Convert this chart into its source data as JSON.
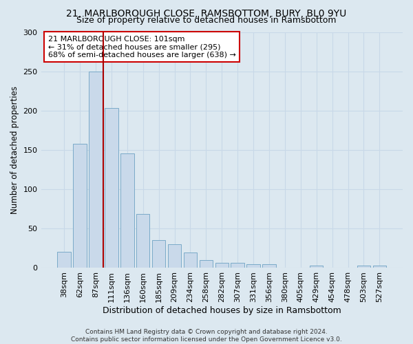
{
  "title": "21, MARLBOROUGH CLOSE, RAMSBOTTOM, BURY, BL0 9YU",
  "subtitle": "Size of property relative to detached houses in Ramsbottom",
  "xlabel": "Distribution of detached houses by size in Ramsbottom",
  "ylabel": "Number of detached properties",
  "categories": [
    "38sqm",
    "62sqm",
    "87sqm",
    "111sqm",
    "136sqm",
    "160sqm",
    "185sqm",
    "209sqm",
    "234sqm",
    "258sqm",
    "282sqm",
    "307sqm",
    "331sqm",
    "356sqm",
    "380sqm",
    "405sqm",
    "429sqm",
    "454sqm",
    "478sqm",
    "503sqm",
    "527sqm"
  ],
  "values": [
    20,
    158,
    250,
    203,
    145,
    68,
    35,
    30,
    19,
    10,
    6,
    6,
    4,
    4,
    0,
    0,
    3,
    0,
    0,
    3,
    3
  ],
  "bar_color": "#c9d9ea",
  "bar_edge_color": "#7aaac8",
  "property_line_x": 2.5,
  "annotation_text": "21 MARLBOROUGH CLOSE: 101sqm\n← 31% of detached houses are smaller (295)\n68% of semi-detached houses are larger (638) →",
  "annotation_box_color": "#ffffff",
  "annotation_box_edge_color": "#cc0000",
  "vline_color": "#aa0000",
  "ylim": [
    0,
    300
  ],
  "yticks": [
    0,
    50,
    100,
    150,
    200,
    250,
    300
  ],
  "grid_color": "#c8d8e8",
  "background_color": "#dce8f0",
  "footer": "Contains HM Land Registry data © Crown copyright and database right 2024.\nContains public sector information licensed under the Open Government Licence v3.0.",
  "title_fontsize": 10,
  "subtitle_fontsize": 9,
  "xlabel_fontsize": 9,
  "ylabel_fontsize": 8.5,
  "tick_fontsize": 8,
  "annotation_fontsize": 8,
  "footer_fontsize": 6.5
}
